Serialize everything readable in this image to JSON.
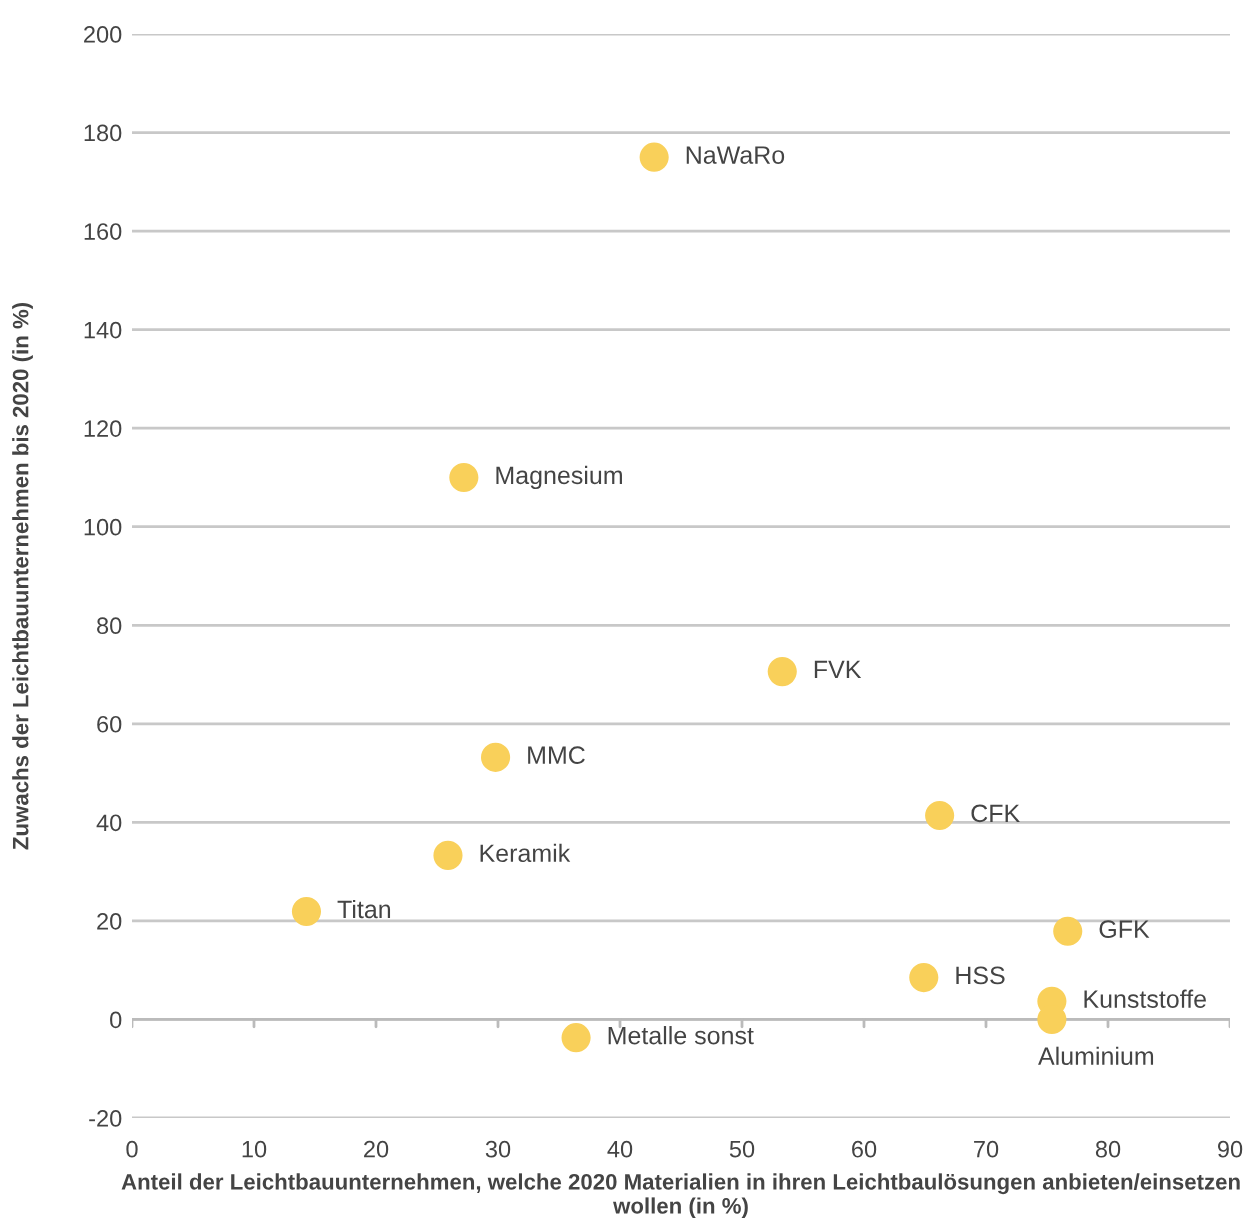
{
  "chart_data": {
    "type": "scatter",
    "xlabel": "Anteil der Leichtbauunternehmen, welche 2020 Materialien in ihren Leichtbaulösungen anbieten/einsetzen wollen (in %)",
    "ylabel": "Zuwachs der Leichtbauunternehmen bis 2020 (in %)",
    "x": [
      42.8,
      27.2,
      53.3,
      29.8,
      66.2,
      25.9,
      14.3,
      76.7,
      64.9,
      75.4,
      75.4,
      36.4
    ],
    "series": [
      {
        "color": "#f9d05a",
        "values": [
          175,
          110,
          70.6,
          53.2,
          41.4,
          33.3,
          21.9,
          17.9,
          8.5,
          3.7,
          0,
          -3.7
        ]
      }
    ],
    "annotations": [
      {
        "text": "NaWaRo",
        "x": 42.8,
        "y": 175
      },
      {
        "text": "Magnesium",
        "x": 27.2,
        "y": 110
      },
      {
        "text": "FVK",
        "x": 53.3,
        "y": 70.6
      },
      {
        "text": "MMC",
        "x": 29.8,
        "y": 53.2
      },
      {
        "text": "CFK",
        "x": 66.2,
        "y": 41.4
      },
      {
        "text": "Keramik",
        "x": 25.9,
        "y": 33.3
      },
      {
        "text": "Titan",
        "x": 14.3,
        "y": 21.9
      },
      {
        "text": "GFK",
        "x": 76.7,
        "y": 17.9
      },
      {
        "text": "HSS",
        "x": 64.9,
        "y": 8.5
      },
      {
        "text": "Kunststoffe",
        "x": 75.4,
        "y": 3.7
      },
      {
        "text": "Aluminium",
        "x": 75.4,
        "y": 0
      },
      {
        "text": "Metalle sonst",
        "x": 36.4,
        "y": -3.7
      }
    ],
    "xlim": [
      0,
      90
    ],
    "xticks": [
      0,
      10,
      20,
      30,
      40,
      50,
      60,
      70,
      80,
      90
    ],
    "ylim": [
      -20,
      200
    ],
    "yticks": [
      -20,
      0,
      20,
      40,
      60,
      80,
      100,
      120,
      140,
      160,
      180,
      200
    ],
    "grid": "y",
    "marker": "circle",
    "legend": false
  }
}
